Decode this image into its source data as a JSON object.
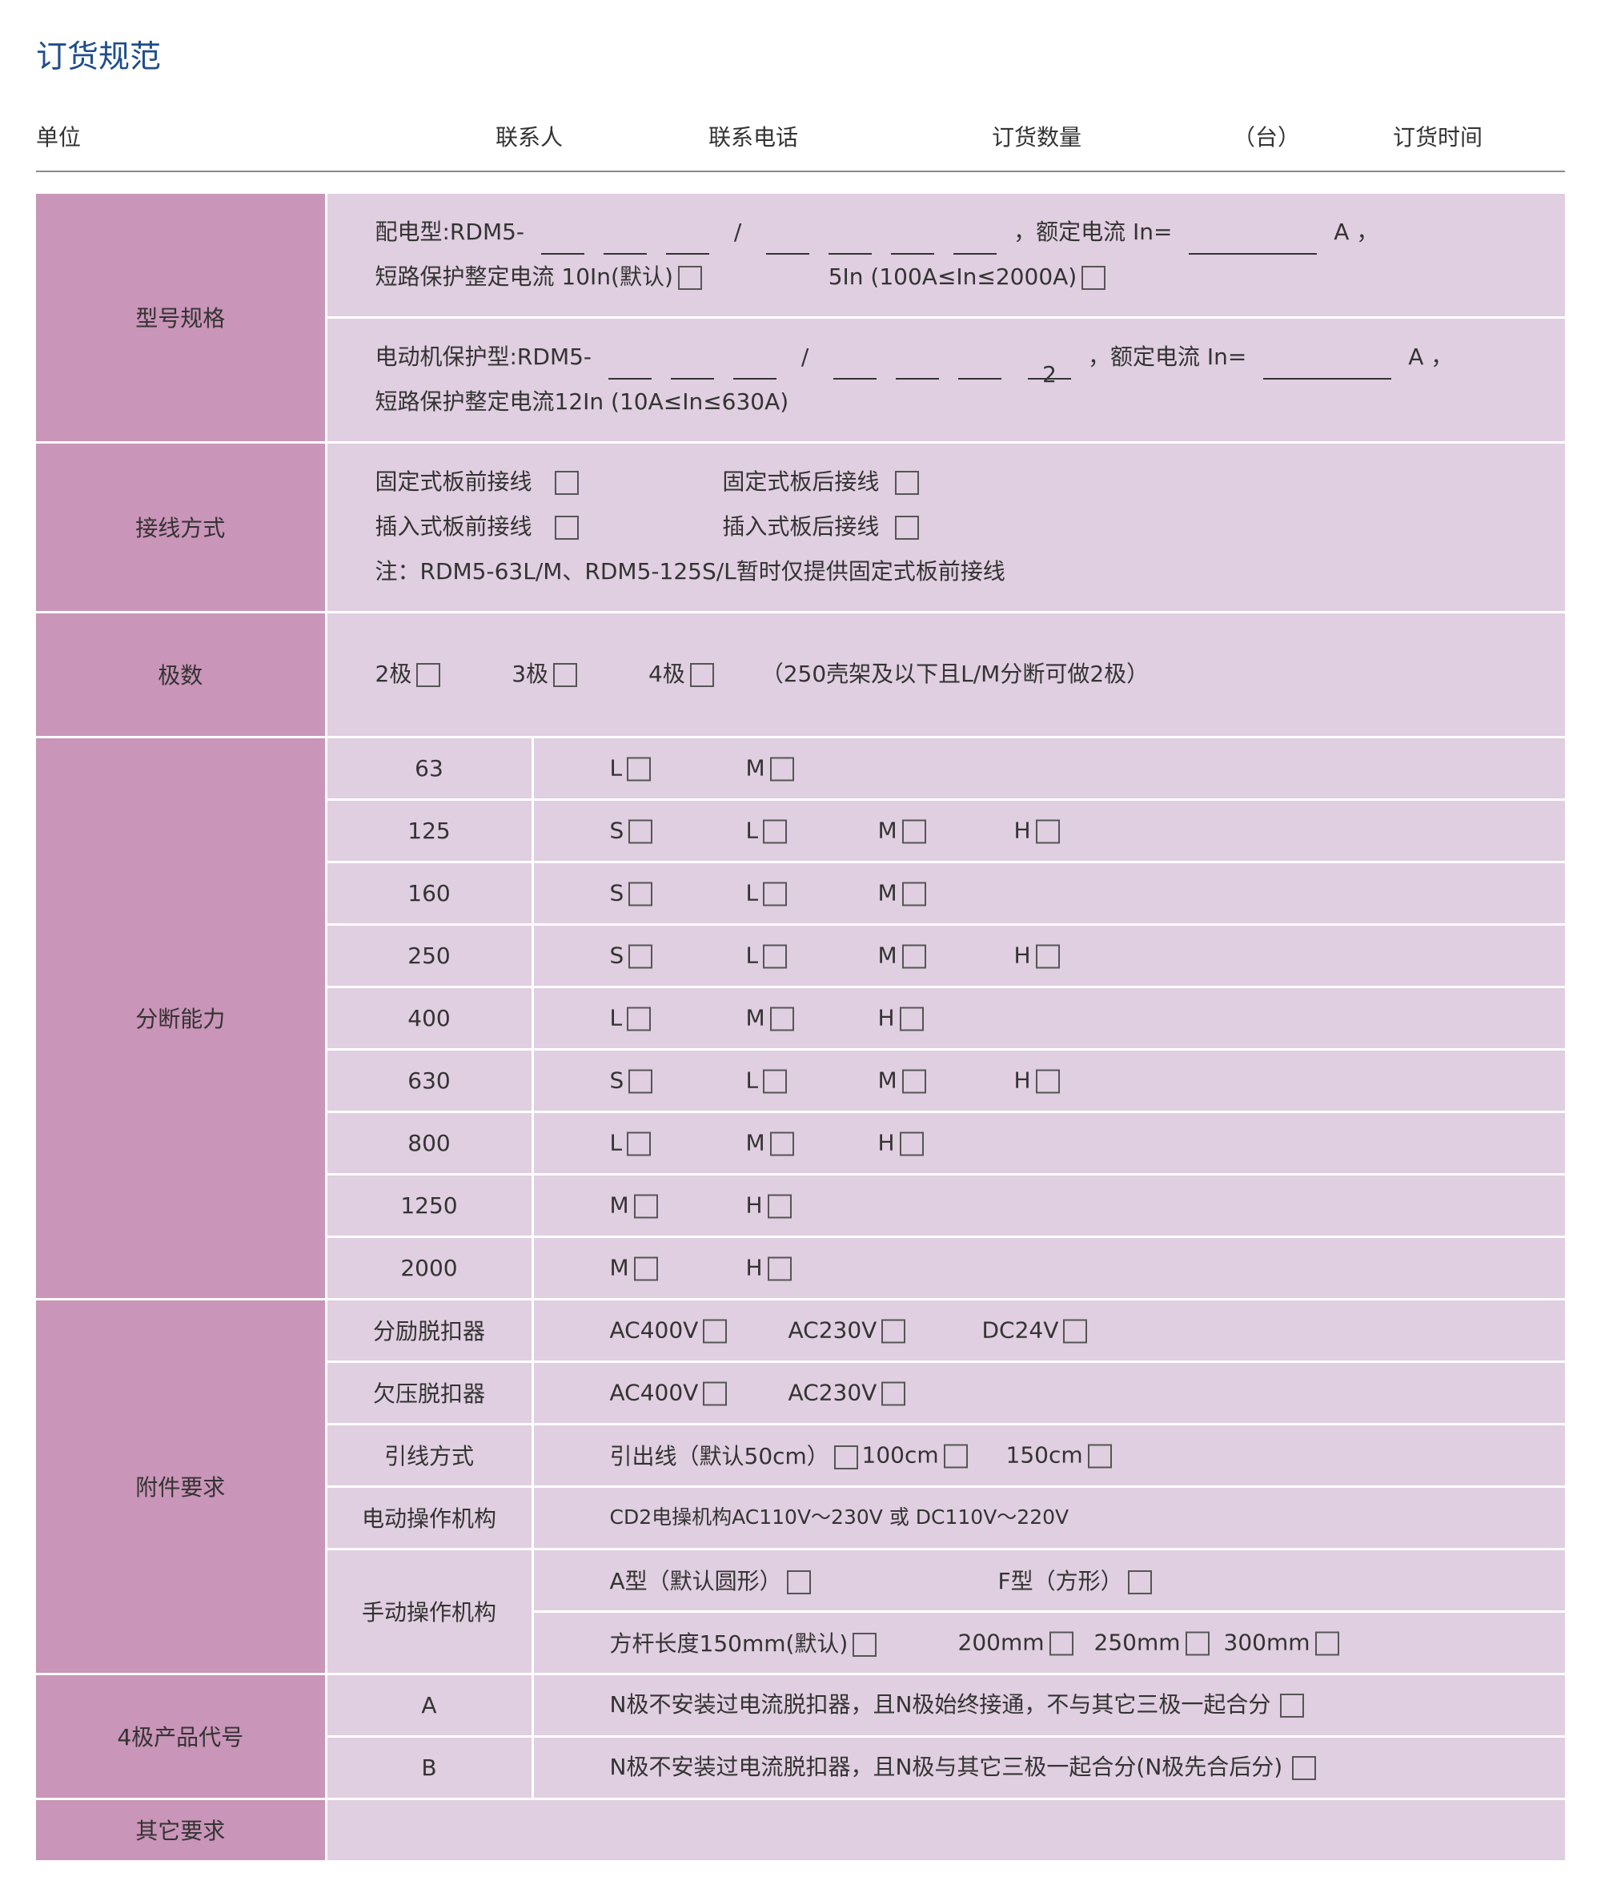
{
  "title": "订货规范",
  "header": {
    "unit": "单位",
    "contact": "联系人",
    "phone": "联系电话",
    "quantity": "订货数量",
    "quantity_unit": "（台）",
    "order_time": "订货时间"
  },
  "model": {
    "label": "型号规格",
    "distribution_prefix": "配电型:RDM5-",
    "slash": "/",
    "rated_current": "，额定电流  In=",
    "amp_suffix": "A ，",
    "dist_short_circuit_default": "短路保护整定电流  10In(默认)",
    "dist_short_circuit_alt": "5In (100A≤In≤2000A)",
    "motor_prefix": "电动机保护型:RDM5-",
    "motor_fixed_digit": "2",
    "motor_short_circuit": "短路保护整定电流12In (10A≤In≤630A)"
  },
  "wiring": {
    "label": "接线方式",
    "options": [
      "固定式板前接线",
      "固定式板后接线",
      "插入式板前接线",
      "插入式板后接线"
    ],
    "note": "注：RDM5-63L/M、RDM5-125S/L暂时仅提供固定式板前接线"
  },
  "poles": {
    "label": "极数",
    "options": [
      "2极",
      "3极",
      "4极"
    ],
    "note": "（250壳架及以下且L/M分断可做2极）"
  },
  "breaking": {
    "label": "分断能力",
    "rows": [
      {
        "frame": "63",
        "options": [
          "L",
          "M"
        ]
      },
      {
        "frame": "125",
        "options": [
          "S",
          "L",
          "M",
          "H"
        ]
      },
      {
        "frame": "160",
        "options": [
          "S",
          "L",
          "M"
        ]
      },
      {
        "frame": "250",
        "options": [
          "S",
          "L",
          "M",
          "H"
        ]
      },
      {
        "frame": "400",
        "options": [
          "L",
          "M",
          "H"
        ]
      },
      {
        "frame": "630",
        "options": [
          "S",
          "L",
          "M",
          "H"
        ]
      },
      {
        "frame": "800",
        "options": [
          "L",
          "M",
          "H"
        ]
      },
      {
        "frame": "1250",
        "options": [
          "M",
          "H"
        ]
      },
      {
        "frame": "2000",
        "options": [
          "M",
          "H"
        ]
      }
    ]
  },
  "accessories": {
    "label": "附件要求",
    "shunt": {
      "label": "分励脱扣器",
      "options": [
        "AC400V",
        "AC230V",
        "DC24V"
      ]
    },
    "undervoltage": {
      "label": "欠压脱扣器",
      "options": [
        "AC400V",
        "AC230V"
      ]
    },
    "lead": {
      "label": "引线方式",
      "options": [
        "引出线（默认50cm）",
        "100cm",
        "150cm"
      ]
    },
    "motor_op": {
      "label": "电动操作机构",
      "text": "CD2电操机构AC110V～230V 或  DC110V～220V"
    },
    "manual_op": {
      "label": "手动操作机构",
      "types": [
        "A型（默认圆形）",
        "F型（方形）"
      ],
      "lengths": [
        "方杆长度150mm(默认)",
        "200mm",
        "250mm",
        "300mm"
      ]
    }
  },
  "four_pole": {
    "label": "4极产品代号",
    "rows": [
      {
        "code": "A",
        "text": "N极不安装过电流脱扣器，且N极始终接通，不与其它三极一起合分"
      },
      {
        "code": "B",
        "text": "N极不安装过电流脱扣器，且N极与其它三极一起合分(N极先合后分)"
      }
    ]
  },
  "other": {
    "label": "其它要求",
    "value": ""
  },
  "colors": {
    "title": "#1f4e8c",
    "section": "#c995b8",
    "cell": "#e0cfe0",
    "border": "#ffffff"
  }
}
